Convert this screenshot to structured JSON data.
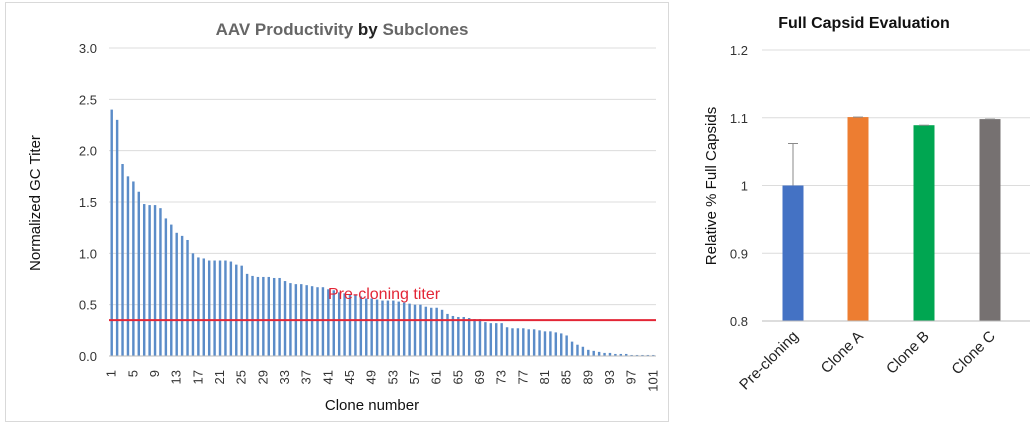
{
  "chart_data": [
    {
      "type": "bar",
      "title_parts": [
        "AAV Productivity ",
        "by",
        " Subclones"
      ],
      "title_colors": [
        "#666666",
        "#222222",
        "#666666"
      ],
      "xlabel": "Clone number",
      "ylabel": "Normalized GC Titer",
      "ylim": [
        0,
        3.0
      ],
      "yticks": [
        "0.0",
        "0.5",
        "1.0",
        "1.5",
        "2.0",
        "2.5",
        "3.0"
      ],
      "xtick_labels": [
        "1",
        "5",
        "9",
        "13",
        "17",
        "21",
        "25",
        "29",
        "33",
        "37",
        "41",
        "45",
        "49",
        "53",
        "57",
        "61",
        "65",
        "69",
        "73",
        "77",
        "81",
        "85",
        "89",
        "93",
        "97",
        "101"
      ],
      "bar_color": "#5b8cc8",
      "values": [
        2.4,
        2.3,
        1.87,
        1.75,
        1.7,
        1.6,
        1.48,
        1.47,
        1.47,
        1.44,
        1.34,
        1.28,
        1.2,
        1.17,
        1.13,
        1.0,
        0.96,
        0.95,
        0.93,
        0.93,
        0.93,
        0.93,
        0.92,
        0.89,
        0.88,
        0.8,
        0.78,
        0.77,
        0.77,
        0.77,
        0.76,
        0.76,
        0.73,
        0.71,
        0.7,
        0.7,
        0.69,
        0.68,
        0.67,
        0.67,
        0.65,
        0.64,
        0.62,
        0.61,
        0.6,
        0.59,
        0.58,
        0.56,
        0.56,
        0.55,
        0.54,
        0.54,
        0.54,
        0.53,
        0.52,
        0.51,
        0.5,
        0.5,
        0.48,
        0.47,
        0.47,
        0.45,
        0.41,
        0.39,
        0.38,
        0.38,
        0.37,
        0.36,
        0.36,
        0.33,
        0.32,
        0.32,
        0.32,
        0.28,
        0.27,
        0.27,
        0.27,
        0.26,
        0.26,
        0.25,
        0.24,
        0.24,
        0.23,
        0.22,
        0.2,
        0.14,
        0.11,
        0.09,
        0.06,
        0.05,
        0.04,
        0.03,
        0.03,
        0.02,
        0.02,
        0.02,
        0.01,
        0.01,
        0.01,
        0.01,
        0.01
      ],
      "reference_line": {
        "value": 0.35,
        "label": "Pre-cloning titer",
        "color": "#e32636"
      }
    },
    {
      "type": "bar",
      "title": "Full Capsid Evaluation",
      "ylabel": "Relative % Full Capsids",
      "ylim": [
        0.8,
        1.2
      ],
      "yticks": [
        "0.8",
        "0.9",
        "1",
        "1.1",
        "1.2"
      ],
      "categories": [
        "Pre-cloning",
        "Clone A",
        "Clone B",
        "Clone C"
      ],
      "values": [
        1.0,
        1.101,
        1.089,
        1.098
      ],
      "errors": [
        0.062,
        0,
        0,
        0
      ],
      "colors": [
        "#4472c4",
        "#ed7d31",
        "#00a651",
        "#767171"
      ]
    }
  ]
}
